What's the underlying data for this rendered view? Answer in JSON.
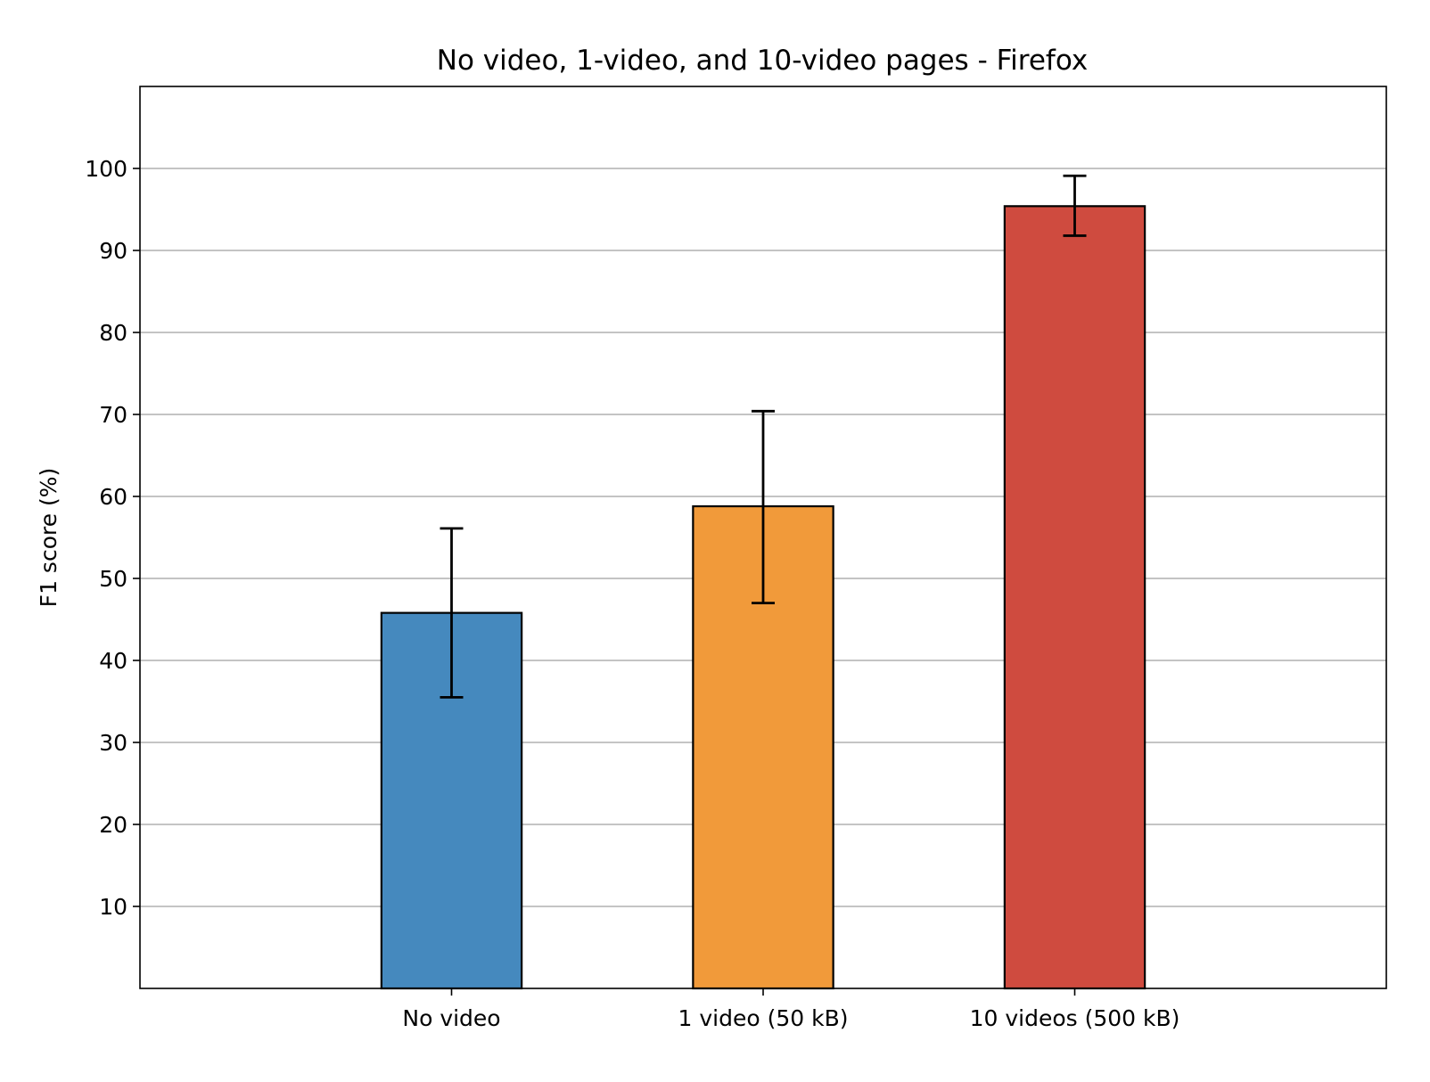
{
  "chart_data": {
    "type": "bar",
    "title": "No video, 1-video, and 10-video pages - Firefox",
    "xlabel": "",
    "ylabel": "F1 score (%)",
    "categories": [
      "No video",
      "1 video (50 kB)",
      "10 videos (500 kB)"
    ],
    "values": [
      45.8,
      58.8,
      95.4
    ],
    "error_low": [
      35.5,
      47.0,
      91.8
    ],
    "error_high": [
      56.1,
      70.4,
      99.1
    ],
    "colors": [
      "#4589be",
      "#f19a3a",
      "#cf4b3f"
    ],
    "ylim": [
      0,
      110
    ],
    "yticks": [
      10,
      20,
      30,
      40,
      50,
      60,
      70,
      80,
      90,
      100
    ],
    "grid": "y",
    "legend": "none"
  }
}
